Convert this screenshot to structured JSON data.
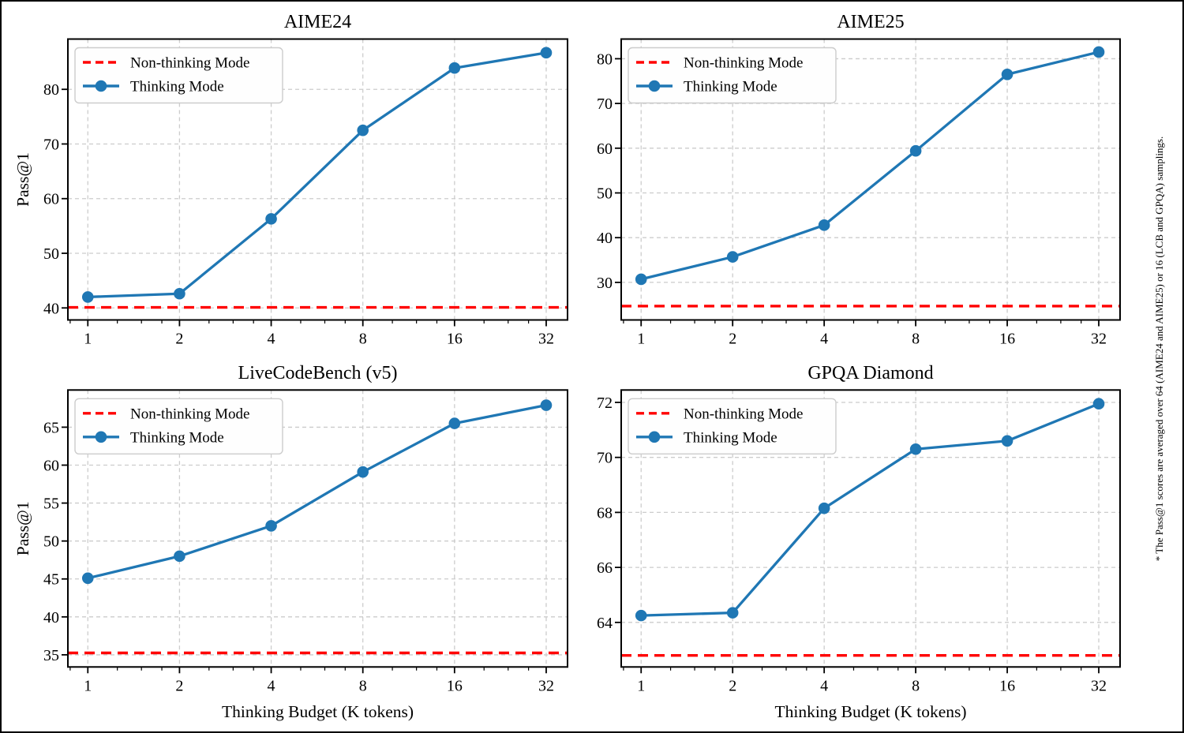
{
  "figure": {
    "ylabel": "Pass@1",
    "xlabel": "Thinking Budget (K tokens)",
    "note": "* The Pass@1 scores are averaged over 64 (AIME24 and AIME25) or 16 (LCB and GPQA) samplings.",
    "legend": {
      "non_thinking_label": "Non-thinking Mode",
      "thinking_label": "Thinking Mode"
    },
    "colors": {
      "thinking": "#1f77b4",
      "non_thinking": "#ff0000",
      "grid": "#cccccc",
      "frame": "#000000",
      "legend_border": "#cccccc",
      "legend_fill": "#fefefe"
    }
  },
  "chart_data": [
    {
      "type": "line",
      "title": "AIME24",
      "xscale": "log2",
      "x": [
        1,
        2,
        4,
        8,
        16,
        32
      ],
      "xticklabels": [
        "1",
        "2",
        "4",
        "8",
        "16",
        "32"
      ],
      "xlim": [
        0.86,
        37.6
      ],
      "series": [
        {
          "name": "Thinking Mode",
          "values": [
            42.0,
            42.6,
            56.3,
            72.5,
            83.9,
            86.7
          ]
        },
        {
          "name": "Non-thinking Mode",
          "style": "dashed-hline",
          "value": 40.1
        }
      ],
      "yticks": [
        40,
        50,
        60,
        70,
        80
      ],
      "ylim": [
        37.8,
        89.2
      ],
      "ylabel": "Pass@1",
      "grid": true,
      "legend_position": "upper-left"
    },
    {
      "type": "line",
      "title": "AIME25",
      "xscale": "log2",
      "x": [
        1,
        2,
        4,
        8,
        16,
        32
      ],
      "xticklabels": [
        "1",
        "2",
        "4",
        "8",
        "16",
        "32"
      ],
      "xlim": [
        0.86,
        37.6
      ],
      "series": [
        {
          "name": "Thinking Mode",
          "values": [
            30.7,
            35.7,
            42.8,
            59.4,
            76.5,
            81.5
          ]
        },
        {
          "name": "Non-thinking Mode",
          "style": "dashed-hline",
          "value": 24.7
        }
      ],
      "yticks": [
        30,
        40,
        50,
        60,
        70,
        80
      ],
      "ylim": [
        21.6,
        84.4
      ],
      "ylabel": "",
      "grid": true,
      "legend_position": "upper-left"
    },
    {
      "type": "line",
      "title": "LiveCodeBench (v5)",
      "xscale": "log2",
      "x": [
        1,
        2,
        4,
        8,
        16,
        32
      ],
      "xticklabels": [
        "1",
        "2",
        "4",
        "8",
        "16",
        "32"
      ],
      "xlim": [
        0.86,
        37.6
      ],
      "series": [
        {
          "name": "Thinking Mode",
          "values": [
            45.1,
            48.0,
            52.0,
            59.1,
            65.5,
            67.9
          ]
        },
        {
          "name": "Non-thinking Mode",
          "style": "dashed-hline",
          "value": 35.25
        }
      ],
      "yticks": [
        35,
        40,
        45,
        50,
        55,
        60,
        65
      ],
      "ylim": [
        33.4,
        69.9
      ],
      "ylabel": "Pass@1",
      "xlabel": "Thinking Budget (K tokens)",
      "grid": true,
      "legend_position": "upper-left"
    },
    {
      "type": "line",
      "title": "GPQA Diamond",
      "xscale": "log2",
      "x": [
        1,
        2,
        4,
        8,
        16,
        32
      ],
      "xticklabels": [
        "1",
        "2",
        "4",
        "8",
        "16",
        "32"
      ],
      "xlim": [
        0.86,
        37.6
      ],
      "series": [
        {
          "name": "Thinking Mode",
          "values": [
            64.25,
            64.35,
            68.15,
            70.3,
            70.6,
            71.95
          ]
        },
        {
          "name": "Non-thinking Mode",
          "style": "dashed-hline",
          "value": 62.8
        }
      ],
      "yticks": [
        64,
        66,
        68,
        70,
        72
      ],
      "ylim": [
        62.38,
        72.45
      ],
      "ylabel": "",
      "xlabel": "Thinking Budget (K tokens)",
      "grid": true,
      "legend_position": "upper-left"
    }
  ]
}
